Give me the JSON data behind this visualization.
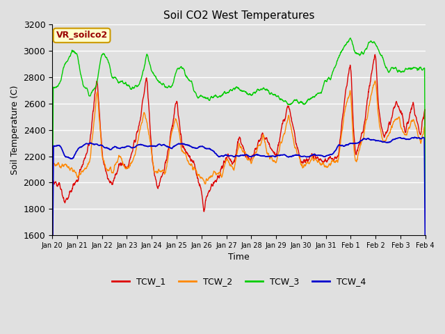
{
  "title": "Soil CO2 West Temperatures",
  "xlabel": "Time",
  "ylabel": "Soil Temperature (C)",
  "ylim": [
    1600,
    3200
  ],
  "bg_color": "#e0e0e0",
  "plot_bg": "#e0e0e0",
  "colors": {
    "TCW_1": "#dd0000",
    "TCW_2": "#ff8800",
    "TCW_3": "#00cc00",
    "TCW_4": "#0000cc"
  },
  "xtick_labels": [
    "Jan 20",
    "Jan 21",
    "Jan 22",
    "Jan 23",
    "Jan 24",
    "Jan 25",
    "Jan 26",
    "Jan 27",
    "Jan 28",
    "Jan 29",
    "Jan 30",
    "Jan 31",
    "Feb 1",
    "Feb 2",
    "Feb 3",
    "Feb 4"
  ],
  "annotation_text": "VR_soilco2",
  "annotation_bg": "#ffffcc",
  "annotation_edge": "#cc9900",
  "annotation_text_color": "#990000",
  "grid_color": "#ffffff",
  "legend_entries": [
    "TCW_1",
    "TCW_2",
    "TCW_3",
    "TCW_4"
  ]
}
